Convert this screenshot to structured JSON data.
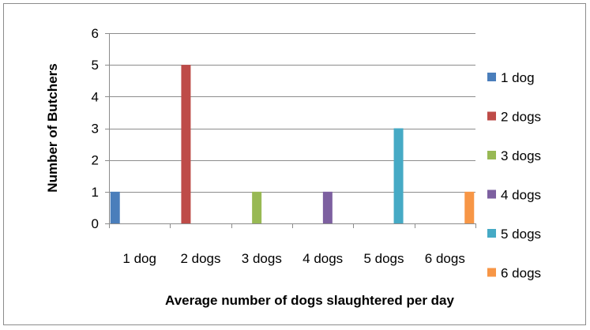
{
  "chart_data": {
    "type": "bar",
    "categories": [
      "1 dog",
      "2 dogs",
      "3 dogs",
      "4 dogs",
      "5 dogs",
      "6 dogs"
    ],
    "series": [
      {
        "name": "1 dog",
        "values": [
          1,
          0,
          0,
          0,
          0,
          0
        ],
        "color": "#4a7ebb"
      },
      {
        "name": "2 dogs",
        "values": [
          0,
          5,
          0,
          0,
          0,
          0
        ],
        "color": "#be4b48"
      },
      {
        "name": "3 dogs",
        "values": [
          0,
          0,
          1,
          0,
          0,
          0
        ],
        "color": "#98b954"
      },
      {
        "name": "4 dogs",
        "values": [
          0,
          0,
          0,
          1,
          0,
          0
        ],
        "color": "#7d60a0"
      },
      {
        "name": "5 dogs",
        "values": [
          0,
          0,
          0,
          0,
          3,
          0
        ],
        "color": "#46aac5"
      },
      {
        "name": "6 dogs",
        "values": [
          0,
          0,
          0,
          0,
          0,
          1
        ],
        "color": "#f79646"
      }
    ],
    "xlabel": "Average number of dogs slaughtered per day",
    "ylabel": "Number of Butchers",
    "ylim": [
      0,
      6
    ],
    "yticks": [
      0,
      1,
      2,
      3,
      4,
      5,
      6
    ],
    "grid": true,
    "legend_position": "right"
  }
}
